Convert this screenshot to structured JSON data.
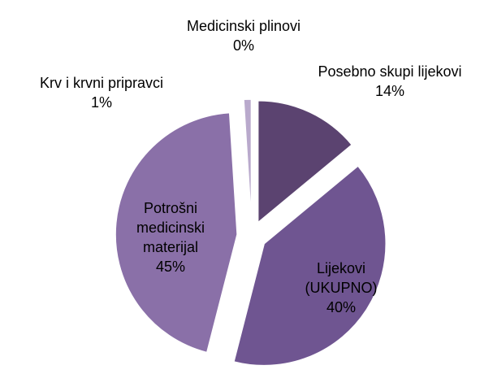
{
  "chart_data": {
    "type": "pie",
    "categories": [
      "Posebno skupi lijekovi",
      "Lijekovi (UKUPNO)",
      "Potrošni medicinski materijal",
      "Krv i krvni pripravci",
      "Medicinski plinovi"
    ],
    "values": [
      14,
      40,
      45,
      1,
      0
    ],
    "value_labels": [
      "14%",
      "40%",
      "45%",
      "1%",
      "0%"
    ],
    "colors": [
      "#5b4370",
      "#6f5591",
      "#8a70a8",
      "#b9a9cc",
      "#d8cfe4"
    ]
  }
}
